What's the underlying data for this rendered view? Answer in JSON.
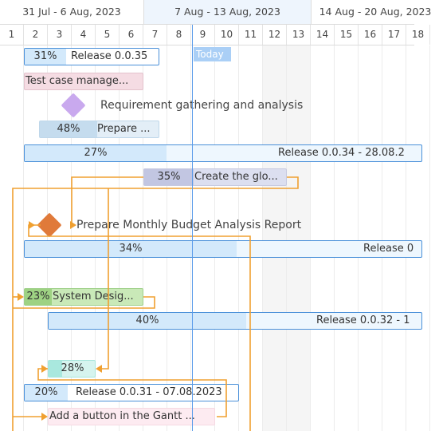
{
  "timeline": {
    "weeks": [
      "31 Jul - 6 Aug, 2023",
      "7 Aug - 13 Aug, 2023",
      "14 Aug - 20 Aug, 2023"
    ],
    "days": [
      "1",
      "2",
      "3",
      "4",
      "5",
      "6",
      "7",
      "8",
      "9",
      "10",
      "11",
      "12",
      "13",
      "14",
      "15",
      "16",
      "17",
      "18"
    ],
    "today_label": "Today"
  },
  "tasks": [
    {
      "name": "release-0035",
      "pct": "31%",
      "label": "Release 0.0.35"
    },
    {
      "name": "test-case-management",
      "pct": "",
      "label": "Test case manage..."
    },
    {
      "name": "requirement-gathering",
      "pct": "",
      "label": "Requirement gathering and analysis"
    },
    {
      "name": "prepare-task",
      "pct": "48%",
      "label": "Prepare ..."
    },
    {
      "name": "release-0034",
      "pct": "27%",
      "label": "Release 0.0.34 - 28.08.2"
    },
    {
      "name": "create-global",
      "pct": "35%",
      "label": "Create the glo..."
    },
    {
      "name": "monthly-budget",
      "pct": "",
      "label": "Prepare Monthly Budget Analysis Report"
    },
    {
      "name": "release-0033",
      "pct": "34%",
      "label": "Release 0"
    },
    {
      "name": "system-design",
      "pct": "23%",
      "label": "System Desig..."
    },
    {
      "name": "release-0032",
      "pct": "40%",
      "label": "Release 0.0.32 - 1"
    },
    {
      "name": "task-28",
      "pct": "28%",
      "label": ""
    },
    {
      "name": "release-0031",
      "pct": "20%",
      "label": "Release 0.0.31 - 07.08.2023"
    },
    {
      "name": "add-button",
      "pct": "",
      "label": "Add a button in the Gantt ..."
    }
  ]
}
